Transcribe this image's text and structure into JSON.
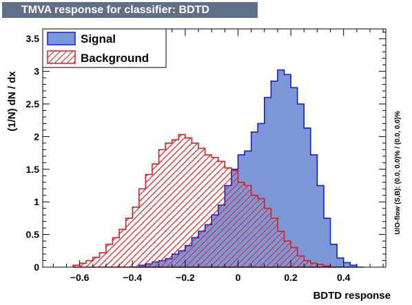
{
  "chart_data": {
    "type": "bar",
    "title": "TMVA response for classifier: BDTD",
    "xlabel": "BDTD response",
    "ylabel": "(1/N) dN / dx",
    "side_note": "U/O-flow (S,B): (0.0, 0.0)% / (0.0, 0.0)%",
    "xlim": [
      -0.74,
      0.56
    ],
    "ylim": [
      0,
      3.65
    ],
    "x_ticks": [
      -0.6,
      -0.4,
      -0.2,
      0,
      0.2,
      0.4
    ],
    "x_tick_labels": [
      "−0.6",
      "−0.4",
      "−0.2",
      "0",
      "0.2",
      "0.4"
    ],
    "y_ticks": [
      0,
      0.5,
      1,
      1.5,
      2,
      2.5,
      3,
      3.5
    ],
    "y_tick_labels": [
      "0",
      "0.5",
      "1",
      "1.5",
      "2",
      "2.5",
      "3",
      "3.5"
    ],
    "bin_width": 0.025,
    "legend_position": "top-left",
    "series": [
      {
        "name": "Signal",
        "style": "filled",
        "fill_color": "#7b97d6",
        "line_color": "#1a1adc",
        "bin_low_edges": [
          -0.4,
          -0.375,
          -0.35,
          -0.325,
          -0.3,
          -0.275,
          -0.25,
          -0.225,
          -0.2,
          -0.175,
          -0.15,
          -0.125,
          -0.1,
          -0.075,
          -0.05,
          -0.025,
          0.0,
          0.025,
          0.05,
          0.075,
          0.1,
          0.125,
          0.15,
          0.175,
          0.2,
          0.225,
          0.25,
          0.275,
          0.3,
          0.325,
          0.35,
          0.375,
          0.4,
          0.425,
          0.45
        ],
        "values": [
          0.0,
          0.03,
          0.05,
          0.08,
          0.1,
          0.13,
          0.2,
          0.25,
          0.33,
          0.45,
          0.55,
          0.65,
          0.8,
          0.95,
          1.25,
          1.5,
          1.72,
          1.78,
          2.07,
          2.2,
          2.6,
          2.85,
          3.02,
          2.95,
          2.75,
          2.5,
          2.13,
          1.72,
          1.25,
          0.75,
          0.35,
          0.14,
          0.07,
          0.03,
          0.0
        ]
      },
      {
        "name": "Background",
        "style": "hatched",
        "fill_color": "#e83030",
        "line_color": "#e41a1a",
        "bin_low_edges": [
          -0.625,
          -0.6,
          -0.575,
          -0.55,
          -0.525,
          -0.5,
          -0.475,
          -0.45,
          -0.425,
          -0.4,
          -0.375,
          -0.35,
          -0.325,
          -0.3,
          -0.275,
          -0.25,
          -0.225,
          -0.2,
          -0.175,
          -0.15,
          -0.125,
          -0.1,
          -0.075,
          -0.05,
          -0.025,
          0.0,
          0.025,
          0.05,
          0.075,
          0.1,
          0.125,
          0.15,
          0.175,
          0.2,
          0.225,
          0.25,
          0.275,
          0.3,
          0.325,
          0.35
        ],
        "values": [
          0.03,
          0.06,
          0.1,
          0.15,
          0.22,
          0.35,
          0.45,
          0.58,
          0.75,
          0.92,
          1.2,
          1.42,
          1.58,
          1.8,
          1.9,
          1.95,
          2.03,
          1.98,
          1.9,
          1.82,
          1.72,
          1.68,
          1.62,
          1.52,
          1.48,
          1.3,
          1.25,
          1.1,
          1.05,
          0.9,
          0.75,
          0.55,
          0.4,
          0.3,
          0.17,
          0.1,
          0.06,
          0.04,
          0.02,
          0.0
        ]
      }
    ]
  }
}
